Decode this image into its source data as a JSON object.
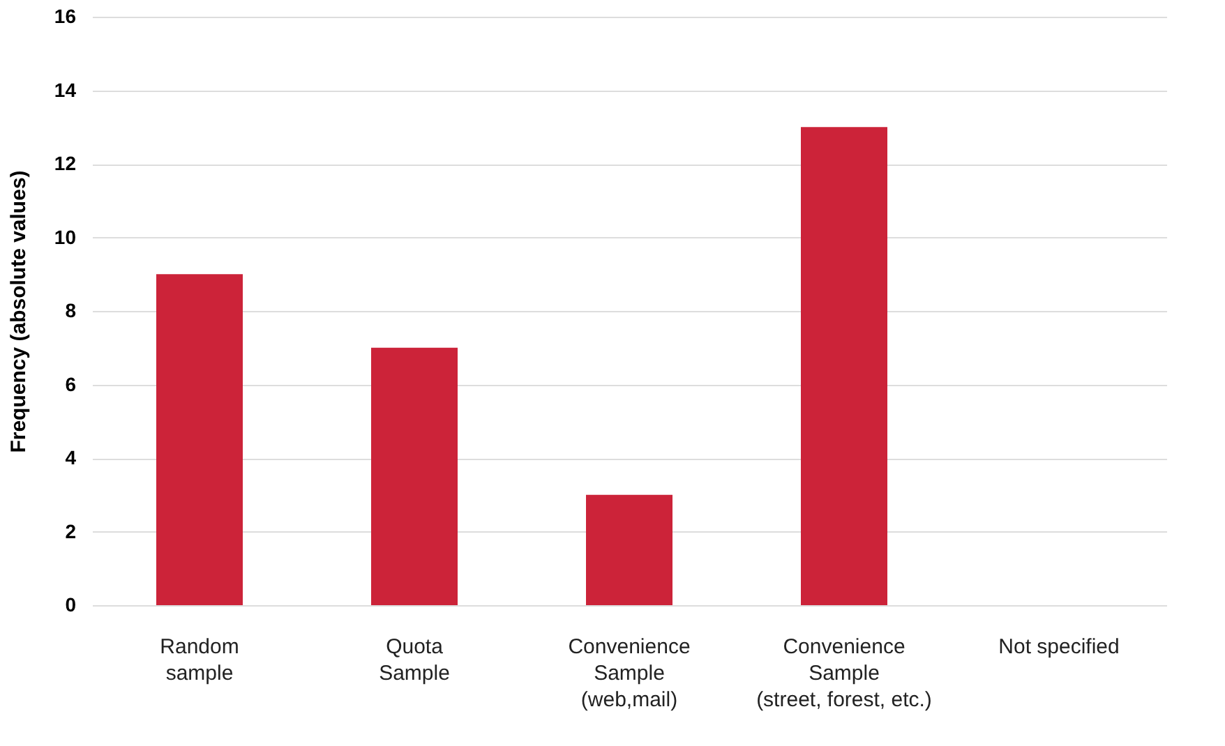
{
  "chart_data": {
    "type": "bar",
    "ylabel": "Frequency (absolute values)",
    "categories": [
      "Random\nsample",
      "Quota\nSample",
      "Convenience\nSample\n(web,mail)",
      "Convenience\nSample\n(street, forest, etc.)",
      "Not specified"
    ],
    "values": [
      9,
      7,
      3,
      13,
      0
    ],
    "color": "#cc2339",
    "ylim": [
      0,
      16
    ],
    "yticks": [
      0,
      2,
      4,
      6,
      8,
      10,
      12,
      14,
      16
    ],
    "grid": "y"
  }
}
